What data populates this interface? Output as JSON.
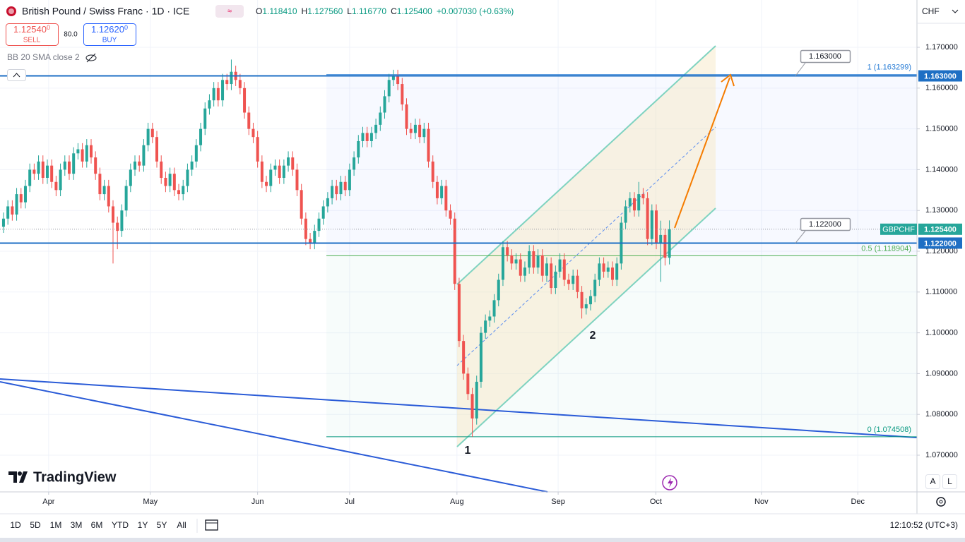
{
  "chart_data": {
    "type": "candlestick",
    "title": "British Pound / Swiss Franc · 1D · ICE",
    "legend_values": [
      {
        "label": "O",
        "value": "1.118410"
      },
      {
        "label": "H",
        "value": "1.127560"
      },
      {
        "label": "L",
        "value": "1.116770"
      },
      {
        "label": "C",
        "value": "1.125400"
      }
    ],
    "change": "+0.007030 (+0.63%)",
    "up_color": "#26a69a",
    "down_color": "#ef5350",
    "grid": true,
    "ylim": [
      1.061,
      1.1816
    ],
    "yticks": [
      {
        "value": 1.07,
        "label": "1.070000"
      },
      {
        "value": 1.08,
        "label": "1.080000"
      },
      {
        "value": 1.09,
        "label": "1.090000"
      },
      {
        "value": 1.1,
        "label": "1.100000"
      },
      {
        "value": 1.11,
        "label": "1.110000"
      },
      {
        "value": 1.12,
        "label": "1.120000"
      },
      {
        "value": 1.13,
        "label": "1.130000"
      },
      {
        "value": 1.14,
        "label": "1.140000"
      },
      {
        "value": 1.15,
        "label": "1.150000"
      },
      {
        "value": 1.16,
        "label": "1.160000"
      },
      {
        "value": 1.17,
        "label": "1.170000"
      }
    ],
    "xlim": [
      -0.8,
      208.5
    ],
    "xticks": [
      {
        "value": 10.3,
        "label": "Apr"
      },
      {
        "value": 33.5,
        "label": "May"
      },
      {
        "value": 58,
        "label": "Jun"
      },
      {
        "value": 79,
        "label": "Jul"
      },
      {
        "value": 103.5,
        "label": "Aug"
      },
      {
        "value": 126.6,
        "label": "Sep"
      },
      {
        "value": 148.9,
        "label": "Oct"
      },
      {
        "value": 173,
        "label": "Nov"
      },
      {
        "value": 195,
        "label": "Dec"
      }
    ],
    "ohlc": [
      [
        1.126,
        1.1295,
        1.1245,
        1.128
      ],
      [
        1.128,
        1.1325,
        1.1265,
        1.131
      ],
      [
        1.131,
        1.1325,
        1.1275,
        1.129
      ],
      [
        1.129,
        1.1355,
        1.1275,
        1.134
      ],
      [
        1.134,
        1.1355,
        1.1305,
        1.132
      ],
      [
        1.132,
        1.1375,
        1.1305,
        1.136
      ],
      [
        1.136,
        1.1415,
        1.1345,
        1.14
      ],
      [
        1.14,
        1.1415,
        1.1375,
        1.139
      ],
      [
        1.139,
        1.1435,
        1.1375,
        1.142
      ],
      [
        1.142,
        1.1435,
        1.1365,
        1.138
      ],
      [
        1.138,
        1.1425,
        1.1365,
        1.141
      ],
      [
        1.141,
        1.1425,
        1.1355,
        1.137
      ],
      [
        1.137,
        1.1385,
        1.1335,
        1.135
      ],
      [
        1.135,
        1.1415,
        1.1335,
        1.14
      ],
      [
        1.14,
        1.1435,
        1.1385,
        1.142
      ],
      [
        1.142,
        1.1435,
        1.1375,
        1.139
      ],
      [
        1.139,
        1.1455,
        1.1375,
        1.144
      ],
      [
        1.144,
        1.1465,
        1.1425,
        1.145
      ],
      [
        1.145,
        1.1465,
        1.1405,
        1.142
      ],
      [
        1.142,
        1.1475,
        1.1405,
        1.146
      ],
      [
        1.146,
        1.1475,
        1.1415,
        1.143
      ],
      [
        1.143,
        1.1445,
        1.1375,
        1.139
      ],
      [
        1.139,
        1.1405,
        1.1325,
        1.134
      ],
      [
        1.134,
        1.1375,
        1.1325,
        1.136
      ],
      [
        1.136,
        1.1375,
        1.1295,
        1.131
      ],
      [
        1.131,
        1.1325,
        1.117,
        1.127
      ],
      [
        1.127,
        1.1285,
        1.1205,
        1.125
      ],
      [
        1.125,
        1.1315,
        1.1235,
        1.13
      ],
      [
        1.13,
        1.1375,
        1.1285,
        1.136
      ],
      [
        1.136,
        1.1415,
        1.1345,
        1.14
      ],
      [
        1.14,
        1.1435,
        1.1385,
        1.142
      ],
      [
        1.142,
        1.1435,
        1.1395,
        1.141
      ],
      [
        1.141,
        1.1475,
        1.1395,
        1.146
      ],
      [
        1.146,
        1.1515,
        1.1445,
        1.15
      ],
      [
        1.15,
        1.1515,
        1.1465,
        1.148
      ],
      [
        1.148,
        1.1495,
        1.1405,
        1.142
      ],
      [
        1.142,
        1.1435,
        1.1365,
        1.138
      ],
      [
        1.138,
        1.1395,
        1.1345,
        1.136
      ],
      [
        1.136,
        1.1405,
        1.1345,
        1.139
      ],
      [
        1.139,
        1.1405,
        1.1335,
        1.135
      ],
      [
        1.135,
        1.1365,
        1.1325,
        1.134
      ],
      [
        1.134,
        1.1375,
        1.1325,
        1.136
      ],
      [
        1.136,
        1.1415,
        1.1345,
        1.14
      ],
      [
        1.14,
        1.1435,
        1.1385,
        1.142
      ],
      [
        1.142,
        1.1475,
        1.1405,
        1.146
      ],
      [
        1.146,
        1.1515,
        1.1445,
        1.15
      ],
      [
        1.15,
        1.1565,
        1.1485,
        1.155
      ],
      [
        1.155,
        1.1585,
        1.1535,
        1.157
      ],
      [
        1.157,
        1.1615,
        1.1555,
        1.16
      ],
      [
        1.16,
        1.1615,
        1.1555,
        1.157
      ],
      [
        1.157,
        1.1635,
        1.1555,
        1.162
      ],
      [
        1.162,
        1.1635,
        1.1595,
        1.161
      ],
      [
        1.161,
        1.167,
        1.1595,
        1.164
      ],
      [
        1.164,
        1.1655,
        1.1605,
        1.162
      ],
      [
        1.162,
        1.1635,
        1.1585,
        1.16
      ],
      [
        1.16,
        1.1615,
        1.1525,
        1.154
      ],
      [
        1.154,
        1.1555,
        1.1485,
        1.15
      ],
      [
        1.15,
        1.1515,
        1.1465,
        1.148
      ],
      [
        1.148,
        1.1495,
        1.1405,
        1.142
      ],
      [
        1.142,
        1.1435,
        1.1355,
        1.137
      ],
      [
        1.137,
        1.1385,
        1.1345,
        1.136
      ],
      [
        1.136,
        1.1415,
        1.1345,
        1.14
      ],
      [
        1.14,
        1.1425,
        1.1385,
        1.141
      ],
      [
        1.141,
        1.1425,
        1.1365,
        1.138
      ],
      [
        1.138,
        1.1425,
        1.1365,
        1.141
      ],
      [
        1.141,
        1.1445,
        1.1395,
        1.143
      ],
      [
        1.143,
        1.1445,
        1.1385,
        1.14
      ],
      [
        1.14,
        1.1415,
        1.1335,
        1.135
      ],
      [
        1.135,
        1.1365,
        1.1265,
        1.128
      ],
      [
        1.128,
        1.1295,
        1.1215,
        1.123
      ],
      [
        1.123,
        1.1245,
        1.1205,
        1.122
      ],
      [
        1.122,
        1.1265,
        1.1205,
        1.125
      ],
      [
        1.125,
        1.1295,
        1.1235,
        1.128
      ],
      [
        1.128,
        1.1325,
        1.1265,
        1.131
      ],
      [
        1.131,
        1.1345,
        1.1295,
        1.133
      ],
      [
        1.133,
        1.1375,
        1.1315,
        1.136
      ],
      [
        1.136,
        1.1375,
        1.1325,
        1.134
      ],
      [
        1.134,
        1.1385,
        1.1325,
        1.137
      ],
      [
        1.137,
        1.1385,
        1.1335,
        1.135
      ],
      [
        1.135,
        1.1415,
        1.1335,
        1.14
      ],
      [
        1.14,
        1.1445,
        1.1385,
        1.143
      ],
      [
        1.143,
        1.1485,
        1.1415,
        1.147
      ],
      [
        1.147,
        1.1505,
        1.1455,
        1.149
      ],
      [
        1.149,
        1.1505,
        1.1455,
        1.147
      ],
      [
        1.147,
        1.1505,
        1.1455,
        1.149
      ],
      [
        1.149,
        1.1525,
        1.1475,
        1.151
      ],
      [
        1.151,
        1.1555,
        1.1495,
        1.154
      ],
      [
        1.154,
        1.1595,
        1.1525,
        1.158
      ],
      [
        1.158,
        1.1635,
        1.1565,
        1.162
      ],
      [
        1.162,
        1.1645,
        1.1605,
        1.163
      ],
      [
        1.163,
        1.1645,
        1.1595,
        1.161
      ],
      [
        1.161,
        1.1625,
        1.1545,
        1.156
      ],
      [
        1.156,
        1.1575,
        1.1485,
        1.15
      ],
      [
        1.15,
        1.1515,
        1.1475,
        1.149
      ],
      [
        1.149,
        1.1525,
        1.1475,
        1.151
      ],
      [
        1.151,
        1.1525,
        1.1465,
        1.148
      ],
      [
        1.148,
        1.1515,
        1.1465,
        1.15
      ],
      [
        1.15,
        1.1515,
        1.1405,
        1.142
      ],
      [
        1.142,
        1.1435,
        1.1355,
        1.137
      ],
      [
        1.137,
        1.1385,
        1.1315,
        1.133
      ],
      [
        1.133,
        1.1375,
        1.1315,
        1.136
      ],
      [
        1.136,
        1.1375,
        1.1285,
        1.13
      ],
      [
        1.13,
        1.1315,
        1.1265,
        1.128
      ],
      [
        1.128,
        1.1295,
        1.1105,
        1.112
      ],
      [
        1.112,
        1.1135,
        1.0965,
        1.098
      ],
      [
        1.098,
        1.0995,
        1.0885,
        1.09
      ],
      [
        1.09,
        1.0915,
        1.0835,
        1.085
      ],
      [
        1.085,
        1.0865,
        1.0745,
        1.079
      ],
      [
        1.079,
        1.0895,
        1.0775,
        1.088
      ],
      [
        1.088,
        1.1015,
        1.0865,
        1.1
      ],
      [
        1.1,
        1.1045,
        1.0985,
        1.103
      ],
      [
        1.103,
        1.1055,
        1.1015,
        1.104
      ],
      [
        1.104,
        1.1095,
        1.1025,
        1.108
      ],
      [
        1.108,
        1.1145,
        1.1065,
        1.113
      ],
      [
        1.113,
        1.1225,
        1.1115,
        1.121
      ],
      [
        1.121,
        1.1225,
        1.1175,
        1.119
      ],
      [
        1.119,
        1.1205,
        1.1155,
        1.117
      ],
      [
        1.117,
        1.1195,
        1.1155,
        1.118
      ],
      [
        1.118,
        1.1195,
        1.1125,
        1.114
      ],
      [
        1.114,
        1.1175,
        1.1125,
        1.116
      ],
      [
        1.116,
        1.1215,
        1.1145,
        1.12
      ],
      [
        1.12,
        1.1215,
        1.1145,
        1.116
      ],
      [
        1.116,
        1.1205,
        1.1145,
        1.119
      ],
      [
        1.119,
        1.1205,
        1.1125,
        1.114
      ],
      [
        1.114,
        1.1185,
        1.1125,
        1.117
      ],
      [
        1.117,
        1.1185,
        1.1095,
        1.111
      ],
      [
        1.111,
        1.1165,
        1.1095,
        1.115
      ],
      [
        1.115,
        1.1195,
        1.1135,
        1.118
      ],
      [
        1.118,
        1.1195,
        1.1115,
        1.113
      ],
      [
        1.113,
        1.1145,
        1.1105,
        1.112
      ],
      [
        1.112,
        1.1155,
        1.1105,
        1.114
      ],
      [
        1.114,
        1.1155,
        1.1085,
        1.11
      ],
      [
        1.11,
        1.1115,
        1.1035,
        1.106
      ],
      [
        1.106,
        1.1085,
        1.1045,
        1.107
      ],
      [
        1.107,
        1.1105,
        1.1055,
        1.109
      ],
      [
        1.109,
        1.1145,
        1.1075,
        1.113
      ],
      [
        1.113,
        1.1185,
        1.1115,
        1.117
      ],
      [
        1.117,
        1.1185,
        1.1135,
        1.115
      ],
      [
        1.115,
        1.1175,
        1.1135,
        1.116
      ],
      [
        1.116,
        1.1175,
        1.1115,
        1.113
      ],
      [
        1.113,
        1.1185,
        1.1115,
        1.117
      ],
      [
        1.117,
        1.1285,
        1.1155,
        1.127
      ],
      [
        1.127,
        1.1325,
        1.1255,
        1.131
      ],
      [
        1.131,
        1.1345,
        1.1295,
        1.133
      ],
      [
        1.133,
        1.1345,
        1.1285,
        1.13
      ],
      [
        1.13,
        1.137,
        1.1285,
        1.134
      ],
      [
        1.134,
        1.1355,
        1.1315,
        1.133
      ],
      [
        1.133,
        1.1345,
        1.1215,
        1.123
      ],
      [
        1.123,
        1.1315,
        1.1215,
        1.13
      ],
      [
        1.13,
        1.1315,
        1.1205,
        1.122
      ],
      [
        1.122,
        1.1275,
        1.1125,
        1.124
      ],
      [
        1.124,
        1.1255,
        1.1165,
        1.1184
      ],
      [
        1.11841,
        1.12756,
        1.11677,
        1.1254
      ]
    ],
    "levels": [
      {
        "value": 1.163,
        "label": "1.163000"
      },
      {
        "value": 1.122,
        "label": "1.122000"
      }
    ],
    "last_price": {
      "name": "GBPCHF",
      "value": 1.1254,
      "label": "1.125400"
    },
    "fib": [
      {
        "value": 1.163299,
        "label": "1 (1.163299)"
      },
      {
        "value": 1.118904,
        "label": "0.5 (1.118904)"
      },
      {
        "value": 1.074508,
        "label": "0 (1.074508)"
      }
    ],
    "annotations": [
      "1",
      "2"
    ]
  },
  "ui": {
    "currency": "CHF",
    "sell_price": "1.12540",
    "sell_tail": "0",
    "sell_label": "SELL",
    "spread": "80.0",
    "buy_price": "1.12620",
    "buy_tail": "0",
    "buy_label": "BUY",
    "indicator": "BB 20 SMA close 2",
    "logo": "TradingView",
    "ranges": [
      "1D",
      "5D",
      "1M",
      "3M",
      "6M",
      "YTD",
      "1Y",
      "5Y",
      "All"
    ],
    "clock": "12:10:52 (UTC+3)",
    "scale_buttons": [
      "A",
      "L"
    ]
  }
}
